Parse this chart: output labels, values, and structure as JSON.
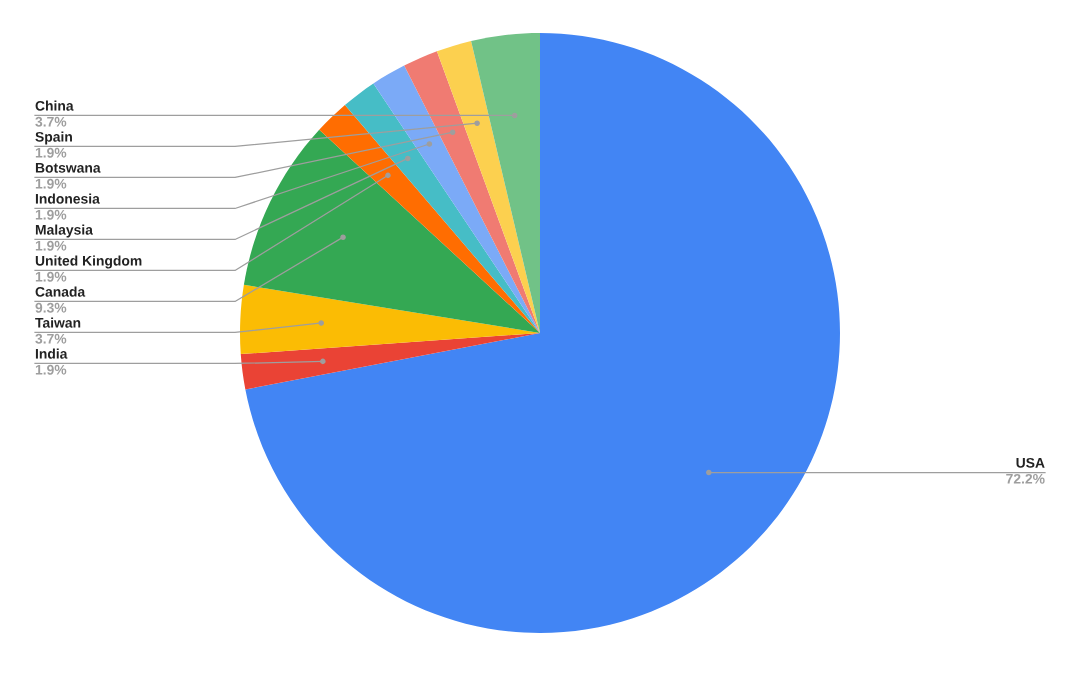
{
  "chart_data": {
    "type": "pie",
    "categories": [
      "USA",
      "India",
      "Taiwan",
      "Canada",
      "United Kingdom",
      "Malaysia",
      "Indonesia",
      "Botswana",
      "Spain",
      "China"
    ],
    "values": [
      72.2,
      1.9,
      3.7,
      9.3,
      1.9,
      1.9,
      1.9,
      1.9,
      1.9,
      3.7
    ],
    "value_labels": [
      "72.2%",
      "1.9%",
      "3.7%",
      "9.3%",
      "1.9%",
      "1.9%",
      "1.9%",
      "1.9%",
      "1.9%",
      "3.7%"
    ],
    "colors": [
      "#4285f4",
      "#ea4335",
      "#fbbc04",
      "#34a853",
      "#ff6d01",
      "#46bdc6",
      "#7baaf7",
      "#f07b72",
      "#fcd04f",
      "#71c287"
    ],
    "legend": false
  }
}
